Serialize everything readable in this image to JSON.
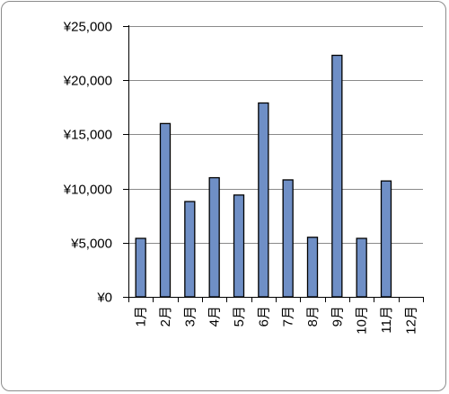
{
  "chart_data": {
    "type": "bar",
    "categories": [
      "1月",
      "2月",
      "3月",
      "4月",
      "5月",
      "6月",
      "7月",
      "8月",
      "9月",
      "10月",
      "11月",
      "12月"
    ],
    "values": [
      5400,
      16000,
      8800,
      11000,
      9400,
      17900,
      10800,
      5500,
      22300,
      5400,
      10700,
      null
    ],
    "y_tick_labels": [
      "¥0",
      "¥5,000",
      "¥10,000",
      "¥15,000",
      "¥20,000",
      "¥25,000"
    ],
    "y_ticks": [
      0,
      5000,
      10000,
      15000,
      20000,
      25000
    ],
    "ylim": [
      0,
      25000
    ],
    "title": "",
    "xlabel": "",
    "ylabel": "",
    "grid": true,
    "legend": "none",
    "colors": {
      "bar": "#6f8fc6",
      "bar_outline": "#000000",
      "grid": "#8a8a8a",
      "frame": "#8c8c8c"
    }
  }
}
